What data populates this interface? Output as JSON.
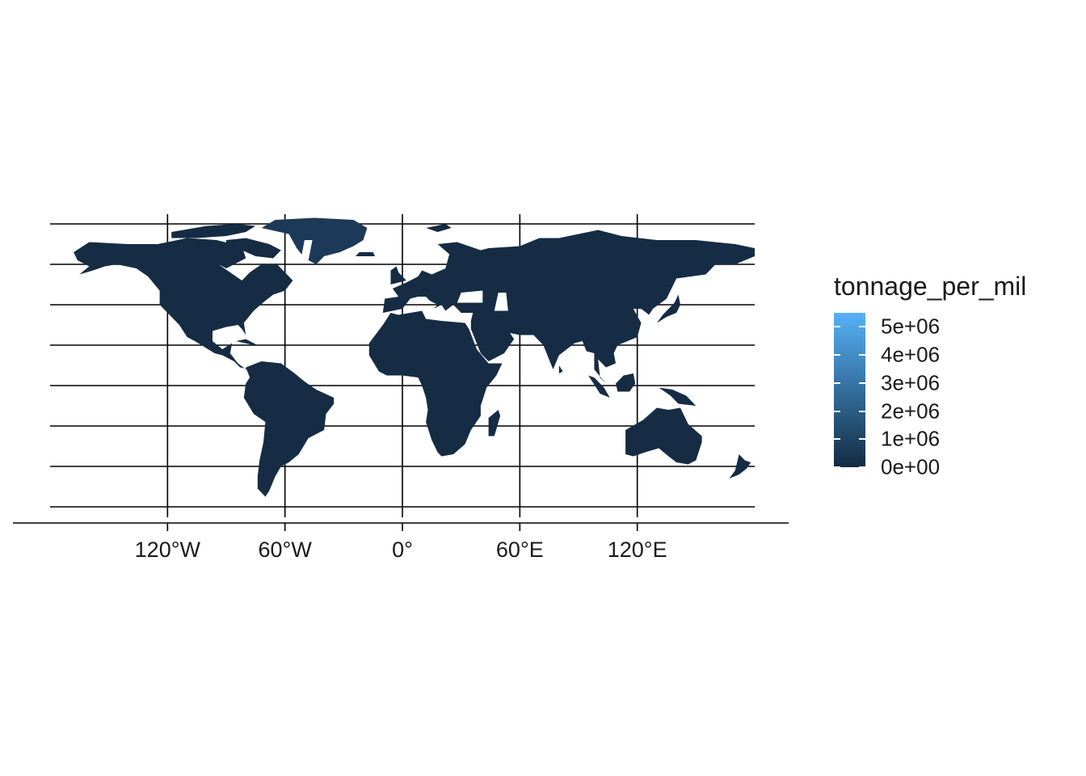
{
  "map": {
    "x_axis_ticks": [
      {
        "lon": -120,
        "label": "120°W"
      },
      {
        "lon": -60,
        "label": "60°W"
      },
      {
        "lon": 0,
        "label": "0°"
      },
      {
        "lon": 60,
        "label": "60°E"
      },
      {
        "lon": 120,
        "label": "120°E"
      }
    ],
    "graticule_latitudes": [
      80,
      60,
      40,
      20,
      0,
      -20,
      -40,
      -60
    ],
    "land_fill": "#152c44",
    "greenland_fill": "#1c3a57",
    "background": "#ffffff"
  },
  "legend": {
    "title": "tonnage_per_mil",
    "labels": [
      "5e+06",
      "4e+06",
      "3e+06",
      "2e+06",
      "1e+06",
      "0e+00"
    ],
    "values": [
      5000000,
      4000000,
      3000000,
      2000000,
      1000000,
      0
    ],
    "range": [
      0,
      5500000
    ],
    "color_low": "#132b43",
    "color_high": "#56b1f7"
  }
}
